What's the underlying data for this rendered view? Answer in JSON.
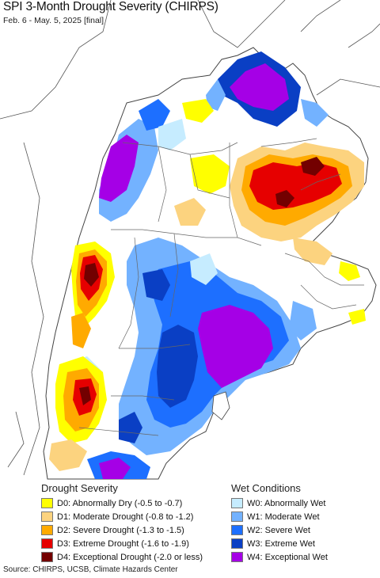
{
  "title": "SPI 3-Month Drought Severity (CHIRPS)",
  "subtitle": "Feb. 6 - May. 5, 2025 [final]",
  "legend": {
    "drought_heading": "Drought Severity",
    "wet_heading": "Wet Conditions",
    "drought_items": [
      {
        "label": "D0: Abnormally Dry (-0.5 to -0.7)",
        "color": "#ffff00"
      },
      {
        "label": "D1: Moderate Drought (-0.8 to -1.2)",
        "color": "#fcd37f"
      },
      {
        "label": "D2: Severe Drought (-1.3 to -1.5)",
        "color": "#ffaa00"
      },
      {
        "label": "D3: Extreme Drought (-1.6 to -1.9)",
        "color": "#e60000"
      },
      {
        "label": "D4: Exceptional Drought (-2.0 or less)",
        "color": "#730000"
      }
    ],
    "wet_items": [
      {
        "label": "W0: Abnormally Wet",
        "color": "#c6ecff"
      },
      {
        "label": "W1: Moderate Wet",
        "color": "#73b2ff"
      },
      {
        "label": "W2: Severe Wet",
        "color": "#1d6fff"
      },
      {
        "label": "W3: Extreme Wet",
        "color": "#0a3fc4"
      },
      {
        "label": "W4: Exceptional Wet",
        "color": "#a500e6"
      }
    ]
  },
  "footer": "Source: CHIRPS, UCSB, Climate Hazards Center",
  "colors": {
    "ocean": "#ffffff",
    "outside_land": "#ffffff",
    "border": "#555555",
    "normal": "#ffffff"
  }
}
